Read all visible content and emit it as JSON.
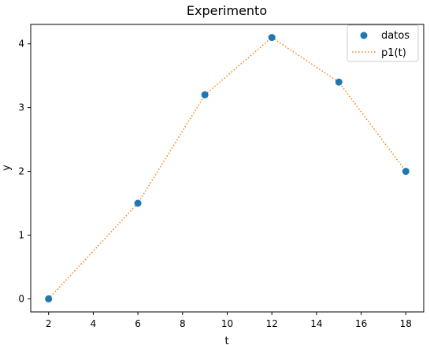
{
  "chart_data": {
    "type": "line",
    "title": "Experimento",
    "xlabel": "t",
    "ylabel": "y",
    "xlim": [
      1.2,
      18.8
    ],
    "ylim": [
      -0.205,
      4.305
    ],
    "xticks": [
      2,
      4,
      6,
      8,
      10,
      12,
      14,
      16,
      18
    ],
    "yticks": [
      0,
      1,
      2,
      3,
      4
    ],
    "grid": false,
    "legend_position": "top-right",
    "series": [
      {
        "name": "datos",
        "kind": "scatter",
        "color": "#1f77b4",
        "x": [
          2,
          6,
          9,
          12,
          15,
          18
        ],
        "y": [
          0,
          1.5,
          3.2,
          4.1,
          3.4,
          2.0
        ]
      },
      {
        "name": "p1(t)",
        "kind": "line",
        "linestyle": "dotted",
        "color": "#ff7f0e",
        "x": [
          2,
          6,
          9,
          12,
          15,
          18
        ],
        "y": [
          0,
          1.5,
          3.2,
          4.1,
          3.4,
          2.0
        ]
      }
    ]
  }
}
